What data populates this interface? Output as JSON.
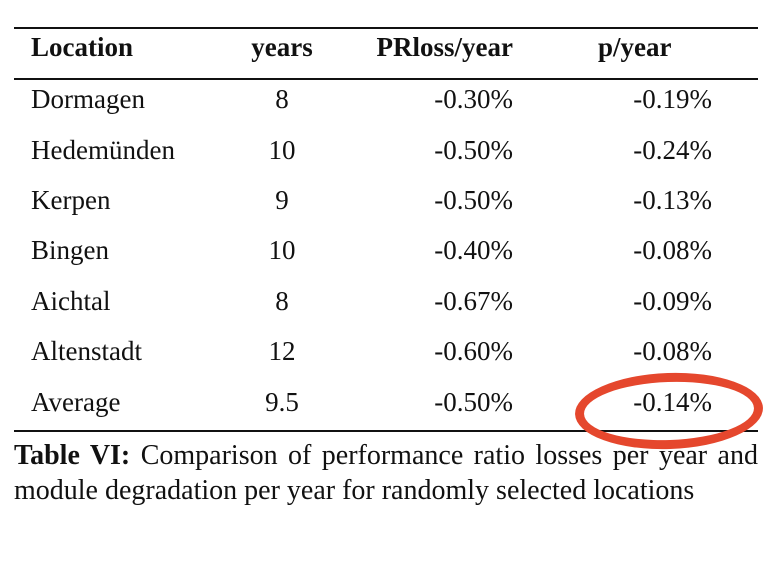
{
  "table": {
    "headers": {
      "location": "Location",
      "years": "years",
      "prloss": "PRloss/year",
      "p": "p/year"
    },
    "rows": [
      {
        "location": "Dormagen",
        "years": "8",
        "prloss": "-0.30%",
        "p": "-0.19%"
      },
      {
        "location": "Hedemünden",
        "years": "10",
        "prloss": "-0.50%",
        "p": "-0.24%"
      },
      {
        "location": "Kerpen",
        "years": "9",
        "prloss": "-0.50%",
        "p": "-0.13%"
      },
      {
        "location": "Bingen",
        "years": "10",
        "prloss": "-0.40%",
        "p": "-0.08%"
      },
      {
        "location": "Aichtal",
        "years": "8",
        "prloss": "-0.67%",
        "p": "-0.09%"
      },
      {
        "location": "Altenstadt",
        "years": "12",
        "prloss": "-0.60%",
        "p": "-0.08%"
      },
      {
        "location": "Average",
        "years": "9.5",
        "prloss": "-0.50%",
        "p": "-0.14%"
      }
    ]
  },
  "caption": {
    "label": "Table VI:",
    "text": "Comparison of performance ratio losses per year and module degradation per year for randomly selected locations"
  },
  "annotation": {
    "highlight_color": "#e5472d",
    "highlighted_cell": "-0.14%"
  }
}
